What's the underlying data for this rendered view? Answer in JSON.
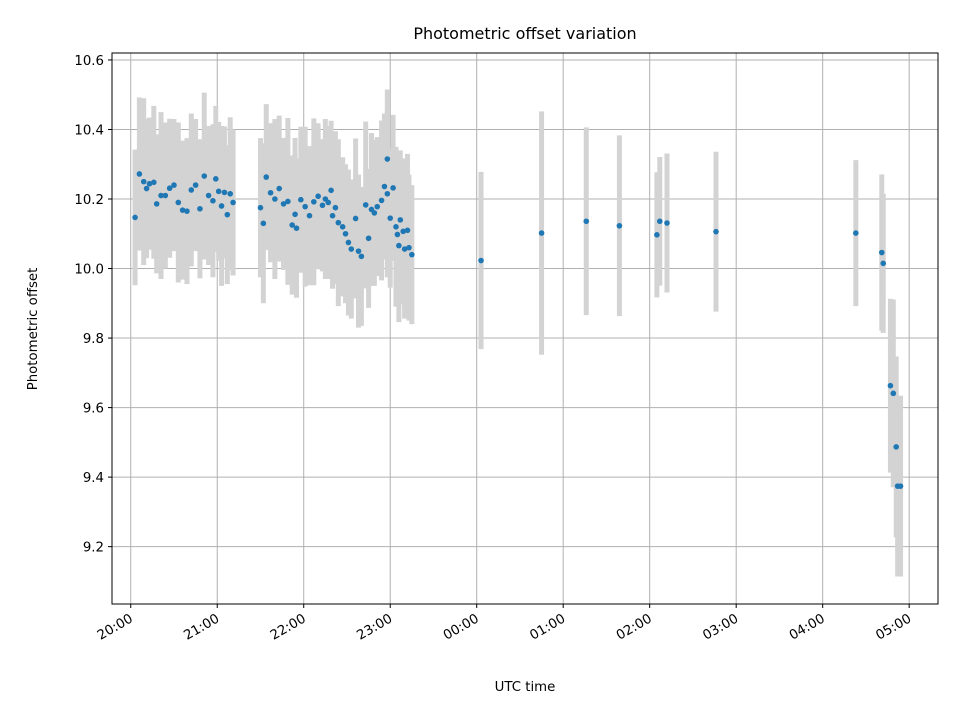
{
  "chart_data": {
    "type": "scatter",
    "title": "Photometric offset variation",
    "xlabel": "UTC time",
    "ylabel": "Photometric offset",
    "x_unit": "UTC time (HH:MM), night of 20:00 to 05:00",
    "xlim": [
      "19:47",
      "05:20"
    ],
    "ylim": [
      9.035,
      10.62
    ],
    "x_ticks": [
      "20:00",
      "21:00",
      "22:00",
      "23:00",
      "00:00",
      "01:00",
      "02:00",
      "03:00",
      "04:00",
      "05:00"
    ],
    "y_ticks": [
      9.2,
      9.4,
      9.6,
      9.8,
      10.0,
      10.2,
      10.4,
      10.6
    ],
    "grid": true,
    "colors": {
      "marker": "#1f77b4",
      "errorbar": "#d3d3d3",
      "grid": "#b0b0b0"
    },
    "series": [
      {
        "points": [
          [
            "20:03",
            10.147,
            0.195
          ],
          [
            "20:06",
            10.272,
            0.22
          ],
          [
            "20:09",
            10.25,
            0.24
          ],
          [
            "20:11",
            10.23,
            0.2
          ],
          [
            "20:13",
            10.244,
            0.19
          ],
          [
            "20:16",
            10.248,
            0.22
          ],
          [
            "20:18",
            10.186,
            0.2
          ],
          [
            "20:21",
            10.21,
            0.24
          ],
          [
            "20:24",
            10.21,
            0.21
          ],
          [
            "20:27",
            10.231,
            0.2
          ],
          [
            "20:30",
            10.24,
            0.19
          ],
          [
            "20:33",
            10.19,
            0.23
          ],
          [
            "20:36",
            10.168,
            0.2
          ],
          [
            "20:39",
            10.165,
            0.21
          ],
          [
            "20:42",
            10.226,
            0.22
          ],
          [
            "20:45",
            10.24,
            0.19
          ],
          [
            "20:48",
            10.172,
            0.2
          ],
          [
            "20:51",
            10.266,
            0.24
          ],
          [
            "20:54",
            10.21,
            0.2
          ],
          [
            "20:57",
            10.195,
            0.22
          ],
          [
            "20:59",
            10.258,
            0.21
          ],
          [
            "21:01",
            10.222,
            0.2
          ],
          [
            "21:03",
            10.18,
            0.23
          ],
          [
            "21:05",
            10.219,
            0.19
          ],
          [
            "21:07",
            10.155,
            0.2
          ],
          [
            "21:09",
            10.215,
            0.22
          ],
          [
            "21:11",
            10.19,
            0.21
          ],
          [
            "21:30",
            10.175,
            0.2
          ],
          [
            "21:32",
            10.13,
            0.23
          ],
          [
            "21:34",
            10.263,
            0.21
          ],
          [
            "21:37",
            10.218,
            0.2
          ],
          [
            "21:40",
            10.2,
            0.23
          ],
          [
            "21:43",
            10.23,
            0.21
          ],
          [
            "21:46",
            10.186,
            0.19
          ],
          [
            "21:49",
            10.193,
            0.24
          ],
          [
            "21:52",
            10.125,
            0.2
          ],
          [
            "21:54",
            10.156,
            0.22
          ],
          [
            "21:55",
            10.116,
            0.2
          ],
          [
            "21:58",
            10.198,
            0.21
          ],
          [
            "22:01",
            10.178,
            0.23
          ],
          [
            "22:04",
            10.152,
            0.2
          ],
          [
            "22:07",
            10.192,
            0.24
          ],
          [
            "22:10",
            10.208,
            0.21
          ],
          [
            "22:13",
            10.182,
            0.19
          ],
          [
            "22:15",
            10.2,
            0.23
          ],
          [
            "22:17",
            10.19,
            0.22
          ],
          [
            "22:19",
            10.225,
            0.2
          ],
          [
            "22:20",
            10.152,
            0.21
          ],
          [
            "22:22",
            10.175,
            0.22
          ],
          [
            "22:24",
            10.132,
            0.24
          ],
          [
            "22:27",
            10.12,
            0.2
          ],
          [
            "22:29",
            10.1,
            0.2
          ],
          [
            "22:31",
            10.075,
            0.21
          ],
          [
            "22:33",
            10.056,
            0.2
          ],
          [
            "22:36",
            10.144,
            0.23
          ],
          [
            "22:38",
            10.05,
            0.22
          ],
          [
            "22:40",
            10.035,
            0.2
          ],
          [
            "22:43",
            10.183,
            0.24
          ],
          [
            "22:45",
            10.087,
            0.2
          ],
          [
            "22:47",
            10.17,
            0.22
          ],
          [
            "22:49",
            10.16,
            0.21
          ],
          [
            "22:51",
            10.178,
            0.2
          ],
          [
            "22:54",
            10.196,
            0.23
          ],
          [
            "22:56",
            10.236,
            0.21
          ],
          [
            "22:58",
            10.215,
            0.24
          ],
          [
            "22:58",
            10.315,
            0.2
          ],
          [
            "23:00",
            10.145,
            0.2
          ],
          [
            "23:02",
            10.232,
            0.21
          ],
          [
            "23:04",
            10.12,
            0.23
          ],
          [
            "23:05",
            10.098,
            0.2
          ],
          [
            "23:06",
            10.066,
            0.22
          ],
          [
            "23:07",
            10.14,
            0.2
          ],
          [
            "23:09",
            10.107,
            0.21
          ],
          [
            "23:10",
            10.056,
            0.2
          ],
          [
            "23:12",
            10.11,
            0.22
          ],
          [
            "23:13",
            10.06,
            0.21
          ],
          [
            "23:15",
            10.04,
            0.2
          ],
          [
            "00:03",
            10.023,
            0.255
          ],
          [
            "00:45",
            10.102,
            0.35
          ],
          [
            "01:16",
            10.136,
            0.27
          ],
          [
            "01:39",
            10.123,
            0.26
          ],
          [
            "02:05",
            10.097,
            0.18
          ],
          [
            "02:07",
            10.136,
            0.185
          ],
          [
            "02:12",
            10.131,
            0.2
          ],
          [
            "02:46",
            10.106,
            0.23
          ],
          [
            "04:23",
            10.102,
            0.21
          ],
          [
            "04:41",
            10.046,
            0.225
          ],
          [
            "04:42",
            10.015,
            0.2
          ],
          [
            "04:47",
            9.663,
            0.25
          ],
          [
            "04:49",
            9.641,
            0.27
          ],
          [
            "04:51",
            9.487,
            0.26
          ],
          [
            "04:52",
            9.374,
            0.26
          ],
          [
            "04:54",
            9.374,
            0.26
          ]
        ]
      }
    ]
  }
}
